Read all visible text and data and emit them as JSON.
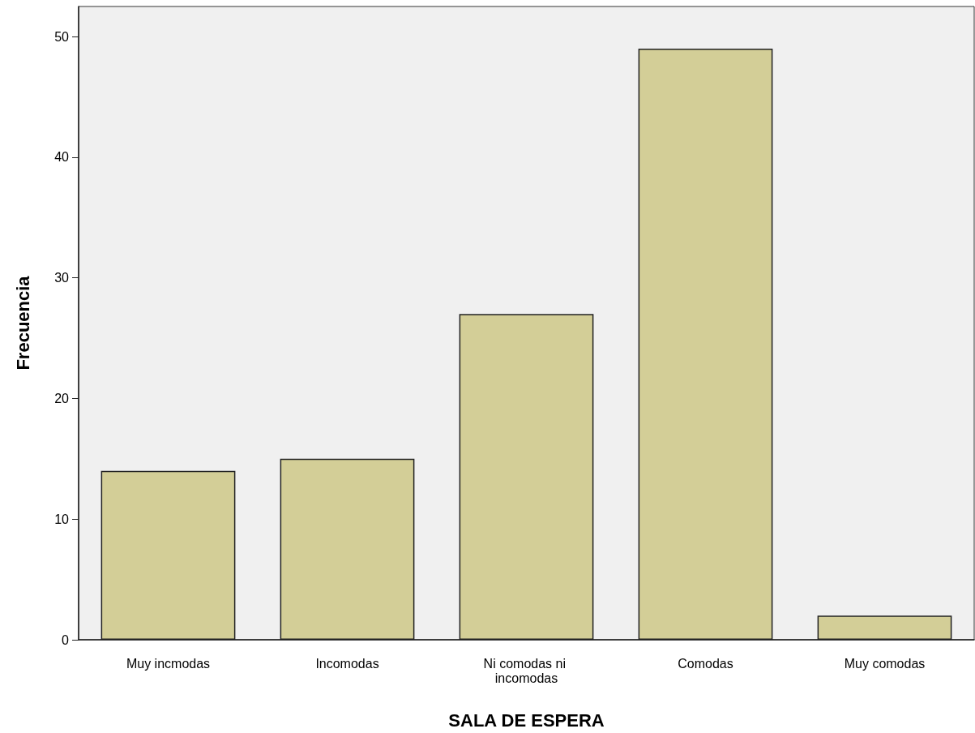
{
  "chart_data": {
    "type": "bar",
    "xlabel": "SALA DE ESPERA",
    "ylabel": "Frecuencia",
    "categories": [
      "Muy incmodas",
      "Incomodas",
      "Ni comodas ni incomodas",
      "Comodas",
      "Muy comodas"
    ],
    "values": [
      14,
      15,
      27,
      49,
      2
    ],
    "color": "#d3ce97",
    "ylim": [
      0,
      52.5
    ],
    "yticks": [
      0,
      10,
      20,
      30,
      40,
      50
    ],
    "grid": false
  }
}
